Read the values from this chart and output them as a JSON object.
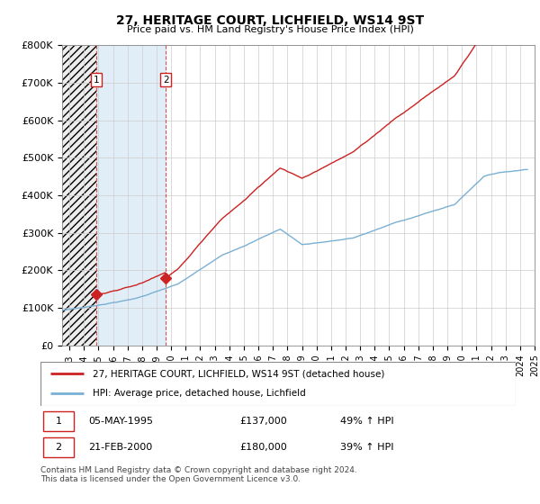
{
  "title1": "27, HERITAGE COURT, LICHFIELD, WS14 9ST",
  "title2": "Price paid vs. HM Land Registry's House Price Index (HPI)",
  "ylim": [
    0,
    800000
  ],
  "xlim_start": 1993.0,
  "xlim_end": 2025.3,
  "hpi_color": "#7ab0d4",
  "price_color": "#cc2222",
  "sale1_date": 1995.35,
  "sale1_price": 137000,
  "sale2_date": 2000.13,
  "sale2_price": 180000,
  "legend_label1": "27, HERITAGE COURT, LICHFIELD, WS14 9ST (detached house)",
  "legend_label2": "HPI: Average price, detached house, Lichfield",
  "footnote": "Contains HM Land Registry data © Crown copyright and database right 2024.\nThis data is licensed under the Open Government Licence v3.0.",
  "ytick_labels": [
    "£0",
    "£100K",
    "£200K",
    "£300K",
    "£400K",
    "£500K",
    "£600K",
    "£700K",
    "£800K"
  ],
  "ytick_values": [
    0,
    100000,
    200000,
    300000,
    400000,
    500000,
    600000,
    700000,
    800000
  ]
}
